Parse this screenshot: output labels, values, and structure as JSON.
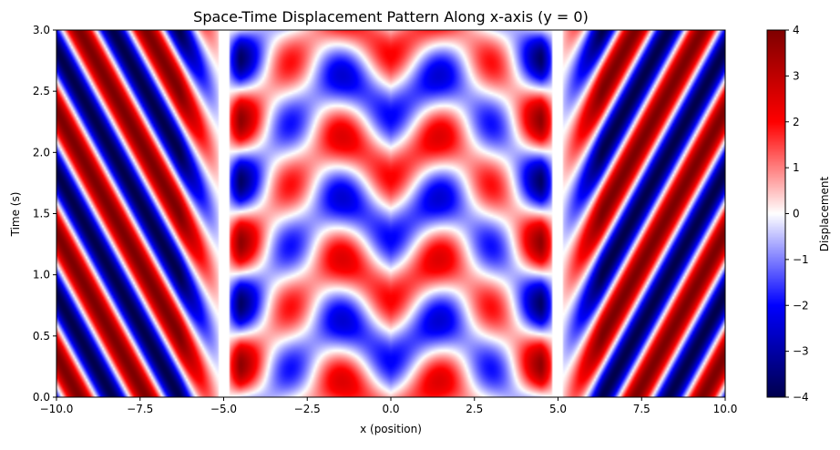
{
  "chart_data": {
    "type": "heatmap",
    "title": "Space-Time Displacement Pattern Along x-axis (y = 0)",
    "xlabel": "x (position)",
    "ylabel": "Time (s)",
    "xlim": [
      -10,
      10
    ],
    "ylim": [
      0,
      3
    ],
    "x_ticks": [
      -10,
      -7.5,
      -5,
      -2.5,
      0,
      2.5,
      5,
      7.5,
      10
    ],
    "x_tick_labels": [
      "−10.0",
      "−7.5",
      "−5.0",
      "−2.5",
      "0.0",
      "2.5",
      "5.0",
      "7.5",
      "10.0"
    ],
    "y_ticks": [
      0,
      0.5,
      1,
      1.5,
      2,
      2.5,
      3
    ],
    "y_tick_labels": [
      "0.0",
      "0.5",
      "1.0",
      "1.5",
      "2.0",
      "2.5",
      "3.0"
    ],
    "colorbar": {
      "label": "Displacement",
      "vmin": -4,
      "vmax": 4,
      "ticks": [
        -4,
        -3,
        -2,
        -1,
        0,
        1,
        2,
        3,
        4
      ],
      "tick_labels": [
        "−4",
        "−3",
        "−2",
        "−1",
        "0",
        "1",
        "2",
        "3",
        "4"
      ],
      "colormap": "seismic",
      "colors": [
        "#00004c",
        "#0000ff",
        "#ffffff",
        "#ff0000",
        "#7f0000"
      ]
    },
    "field": {
      "description_of_values": "displacement over x in [-10,10], t in [0,3]",
      "outer_region": "|x| > 5: diagonal traveling waves, slope moving outward",
      "inner_region": "|x| < 5: standing-wave checker pattern, amplitude up to 4",
      "boundary_x": [
        -5,
        5
      ]
    },
    "grid": false
  }
}
